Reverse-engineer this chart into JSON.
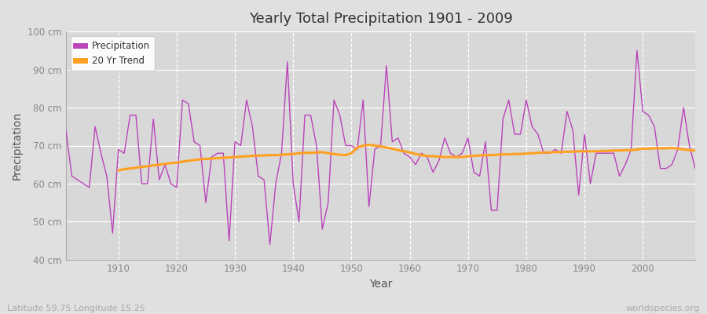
{
  "title": "Yearly Total Precipitation 1901 - 2009",
  "xlabel": "Year",
  "ylabel": "Precipitation",
  "footnote_left": "Latitude 59.75 Longitude 15.25",
  "footnote_right": "worldspecies.org",
  "legend_labels": [
    "Precipitation",
    "20 Yr Trend"
  ],
  "precip_color": "#bb44bb",
  "trend_color": "#ffa020",
  "fig_bg_color": "#e0e0e0",
  "plot_bg_color": "#d8d8d8",
  "ylim": [
    40,
    100
  ],
  "ytick_labels": [
    "40 cm",
    "50 cm",
    "60 cm",
    "70 cm",
    "80 cm",
    "90 cm",
    "100 cm"
  ],
  "ytick_values": [
    40,
    50,
    60,
    70,
    80,
    90,
    100
  ],
  "years": [
    1901,
    1902,
    1903,
    1904,
    1905,
    1906,
    1907,
    1908,
    1909,
    1910,
    1911,
    1912,
    1913,
    1914,
    1915,
    1916,
    1917,
    1918,
    1919,
    1920,
    1921,
    1922,
    1923,
    1924,
    1925,
    1926,
    1927,
    1928,
    1929,
    1930,
    1931,
    1932,
    1933,
    1934,
    1935,
    1936,
    1937,
    1938,
    1939,
    1940,
    1941,
    1942,
    1943,
    1944,
    1945,
    1946,
    1947,
    1948,
    1949,
    1950,
    1951,
    1952,
    1953,
    1954,
    1955,
    1956,
    1957,
    1958,
    1959,
    1960,
    1961,
    1962,
    1963,
    1964,
    1965,
    1966,
    1967,
    1968,
    1969,
    1970,
    1971,
    1972,
    1973,
    1974,
    1975,
    1976,
    1977,
    1978,
    1979,
    1980,
    1981,
    1982,
    1983,
    1984,
    1985,
    1986,
    1987,
    1988,
    1989,
    1990,
    1991,
    1992,
    1993,
    1994,
    1995,
    1996,
    1997,
    1998,
    1999,
    2000,
    2001,
    2002,
    2003,
    2004,
    2005,
    2006,
    2007,
    2008,
    2009
  ],
  "precipitation": [
    74,
    62,
    61,
    60,
    59,
    75,
    68,
    62,
    47,
    69,
    68,
    78,
    78,
    60,
    60,
    77,
    61,
    65,
    60,
    59,
    82,
    81,
    71,
    70,
    55,
    67,
    68,
    68,
    45,
    71,
    70,
    82,
    75,
    62,
    61,
    44,
    60,
    68,
    92,
    60,
    50,
    78,
    78,
    70,
    48,
    55,
    82,
    78,
    70,
    70,
    69,
    82,
    54,
    69,
    70,
    91,
    71,
    72,
    68,
    67,
    65,
    68,
    67,
    63,
    66,
    72,
    68,
    67,
    68,
    72,
    63,
    62,
    71,
    53,
    53,
    77,
    82,
    73,
    73,
    82,
    75,
    73,
    68,
    68,
    69,
    68,
    79,
    74,
    57,
    73,
    60,
    68,
    68,
    68,
    68,
    62,
    65,
    69,
    95,
    79,
    78,
    75,
    64,
    64,
    65,
    69,
    80,
    70,
    64
  ],
  "trend_years": [
    1910,
    1911,
    1912,
    1913,
    1914,
    1915,
    1916,
    1917,
    1918,
    1919,
    1920,
    1921,
    1922,
    1923,
    1924,
    1925,
    1926,
    1927,
    1928,
    1929,
    1930,
    1931,
    1932,
    1933,
    1934,
    1935,
    1936,
    1937,
    1938,
    1939,
    1940,
    1941,
    1942,
    1943,
    1944,
    1945,
    1946,
    1947,
    1948,
    1949,
    1950,
    1951,
    1952,
    1953,
    1954,
    1955,
    1956,
    1957,
    1958,
    1959,
    1960,
    1961,
    1962,
    1963,
    1964,
    1965,
    1966,
    1967,
    1968,
    1969,
    1970,
    1971,
    1972,
    1973,
    1974,
    1975,
    1976,
    1977,
    1978,
    1979,
    1980,
    1981,
    1982,
    1983,
    1984,
    1985,
    1986,
    1987,
    1988,
    1989,
    1990,
    1991,
    1992,
    1993,
    1994,
    1995,
    1996,
    1997,
    1998,
    1999,
    2000,
    2001,
    2002,
    2003,
    2004,
    2005,
    2006,
    2007,
    2008,
    2009
  ],
  "trend_vals": [
    63.5,
    63.8,
    64.0,
    64.2,
    64.4,
    64.6,
    64.8,
    65.0,
    65.2,
    65.4,
    65.5,
    65.8,
    66.0,
    66.2,
    66.4,
    66.5,
    66.6,
    66.7,
    66.8,
    66.9,
    67.0,
    67.1,
    67.2,
    67.3,
    67.4,
    67.4,
    67.5,
    67.5,
    67.6,
    67.7,
    67.8,
    68.0,
    68.1,
    68.1,
    68.2,
    68.3,
    68.0,
    67.8,
    67.6,
    67.5,
    68.0,
    69.5,
    70.0,
    70.2,
    70.0,
    69.8,
    69.5,
    69.2,
    68.8,
    68.5,
    68.2,
    67.8,
    67.5,
    67.3,
    67.2,
    67.1,
    67.0,
    67.0,
    67.0,
    67.0,
    67.2,
    67.3,
    67.4,
    67.5,
    67.5,
    67.6,
    67.7,
    67.7,
    67.8,
    67.8,
    67.9,
    68.0,
    68.1,
    68.2,
    68.2,
    68.3,
    68.3,
    68.4,
    68.4,
    68.5,
    68.5,
    68.5,
    68.5,
    68.6,
    68.6,
    68.7,
    68.7,
    68.8,
    68.8,
    69.0,
    69.2,
    69.2,
    69.3,
    69.3,
    69.3,
    69.4,
    69.2,
    69.0,
    68.8,
    68.7
  ],
  "xticks": [
    1910,
    1920,
    1930,
    1940,
    1950,
    1960,
    1970,
    1980,
    1990,
    2000
  ],
  "xlim": [
    1901,
    2009
  ]
}
